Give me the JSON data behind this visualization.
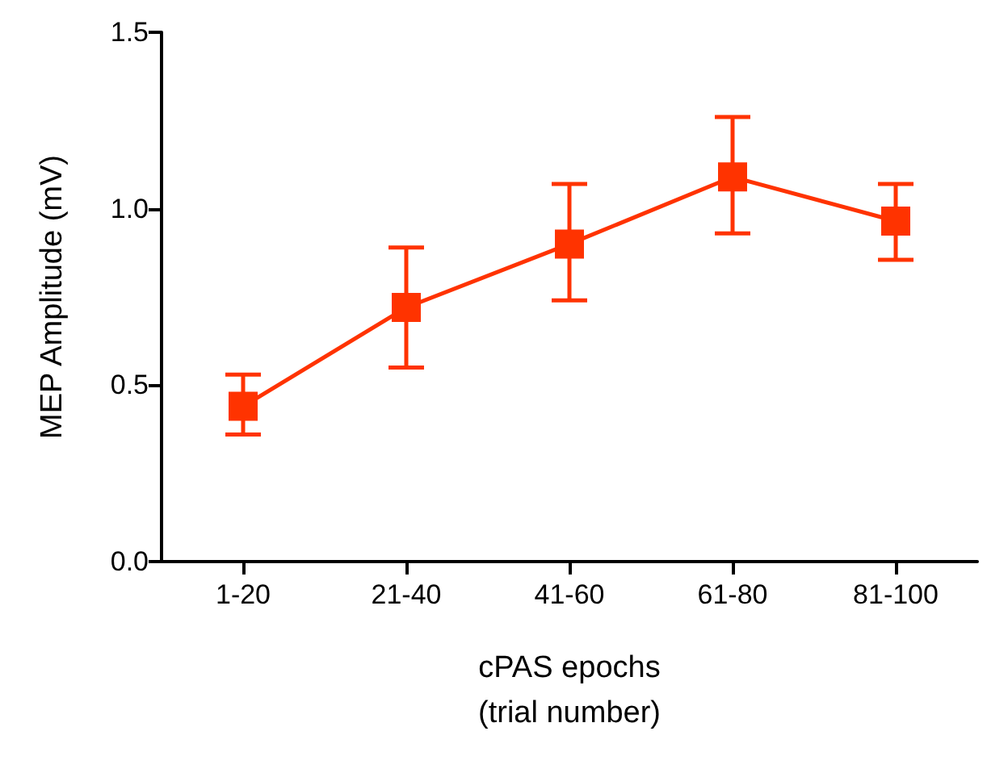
{
  "chart_data": {
    "type": "line",
    "xlabel": "cPAS epochs\n(trial number)",
    "ylabel": "MEP Amplitude (mV)",
    "categories": [
      "1-20",
      "21-40",
      "41-60",
      "61-80",
      "81-100"
    ],
    "series": [
      {
        "color": "#ff3300",
        "values": [
          0.44,
          0.72,
          0.9,
          1.09,
          0.965
        ],
        "errors": [
          [
            0.36,
            0.53
          ],
          [
            0.55,
            0.89
          ],
          [
            0.74,
            1.07
          ],
          [
            0.93,
            1.26
          ],
          [
            0.855,
            1.07
          ]
        ]
      }
    ],
    "ylim": [
      0,
      1.5
    ],
    "yticks": [
      {
        "value": 0,
        "label": "0.0"
      },
      {
        "value": 0.5,
        "label": "0.5"
      },
      {
        "value": 1,
        "label": "1.0"
      },
      {
        "value": 1.5,
        "label": "1.5"
      }
    ],
    "grid": false,
    "marker": "square",
    "line_style": "solid"
  }
}
